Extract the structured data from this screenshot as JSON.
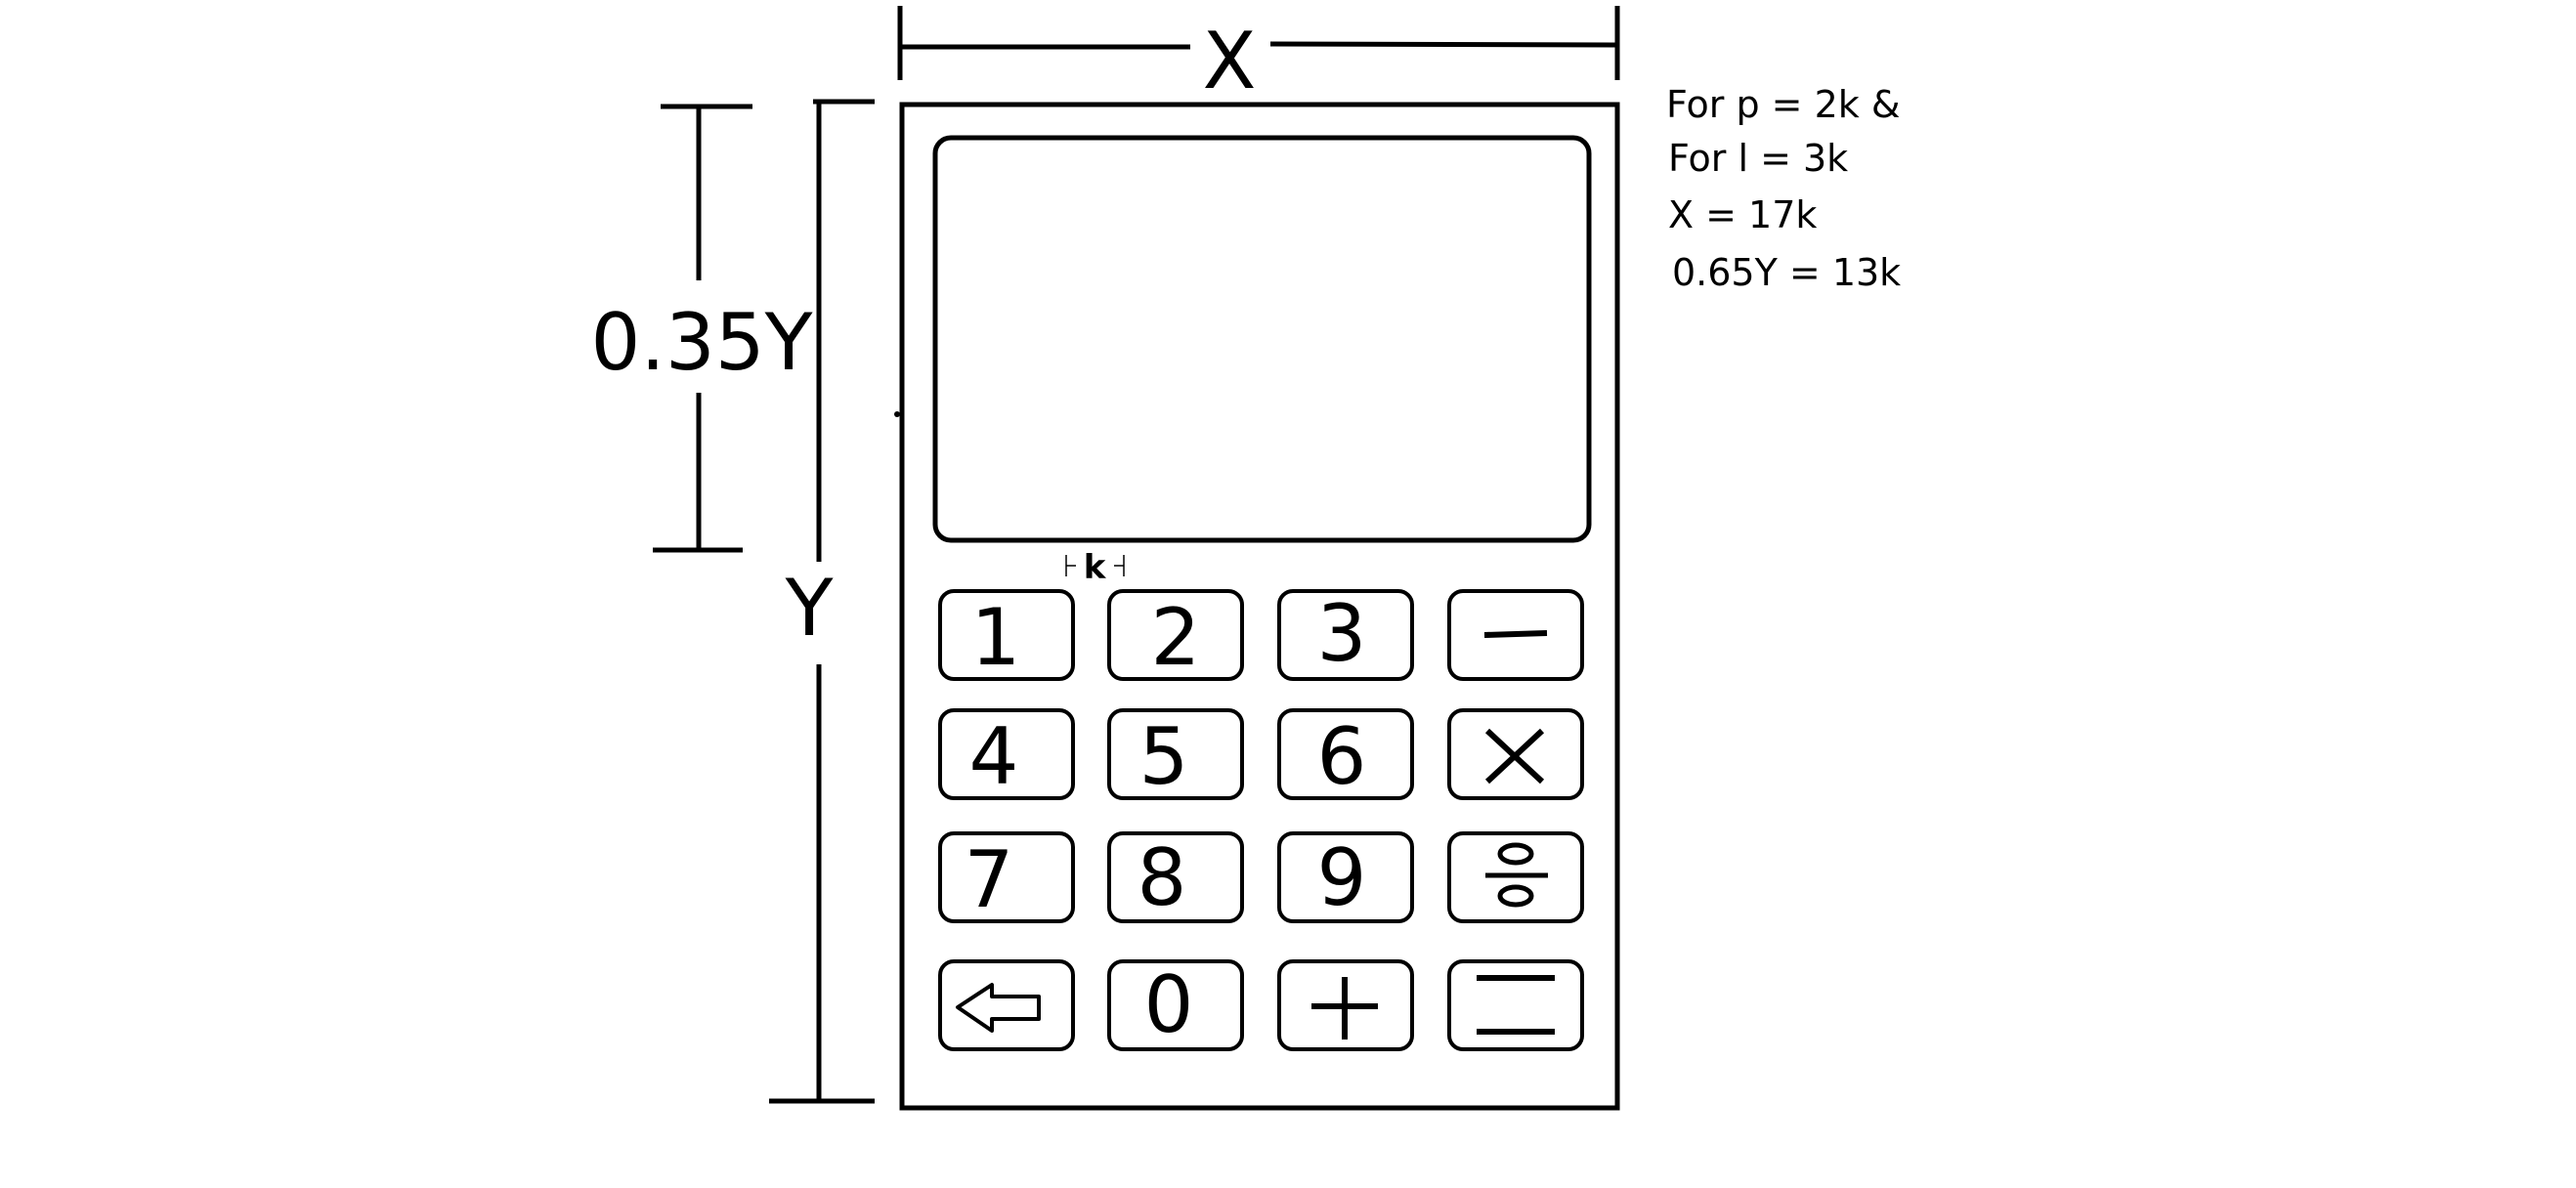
{
  "dimensions": {
    "width_label": "X",
    "height_label": "Y",
    "screen_fraction_label": "0.35Y",
    "key_spacing_label": "k"
  },
  "notes": [
    "For p = 2k &",
    "For l = 3k",
    "X = 17k",
    "0.65Y = 13k"
  ],
  "keypad": {
    "digit_keys": [
      "1",
      "2",
      "3",
      "4",
      "5",
      "6",
      "7",
      "8",
      "9",
      "0"
    ],
    "operator_keys": [
      "minus",
      "multiply",
      "divide",
      "plus",
      "equals",
      "backspace"
    ]
  },
  "colors": {
    "stroke": "#000000",
    "background": "#ffffff"
  }
}
